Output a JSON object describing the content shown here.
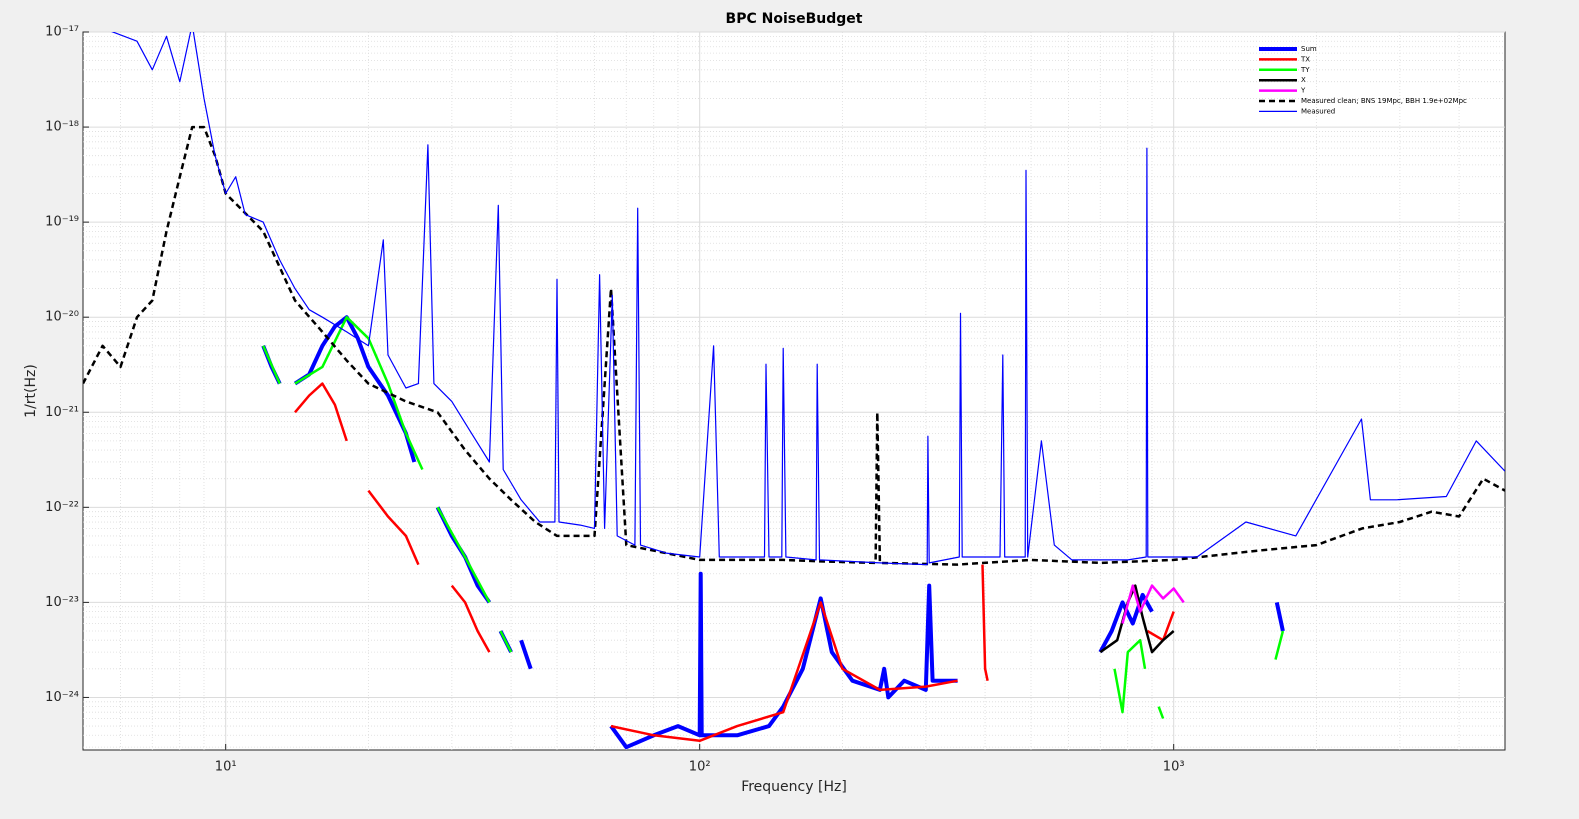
{
  "chart_data": {
    "type": "line",
    "title": "BPC NoiseBudget",
    "x_label": "Frequency [Hz]",
    "y_label": "1/rt(Hz)",
    "xscale": "log",
    "yscale": "log",
    "grid": true,
    "minor_grid": true,
    "legend": "upper right",
    "xlim": [
      5,
      5000
    ],
    "ylim": [
      2.8e-25,
      1e-17
    ],
    "xticks": [
      {
        "value": 10,
        "label": "10¹"
      },
      {
        "value": 100,
        "label": "10²"
      },
      {
        "value": 1000,
        "label": "10³"
      }
    ],
    "yticks": [
      {
        "value": 1e-24,
        "label": "10⁻²⁴"
      },
      {
        "value": 1e-23,
        "label": "10⁻²³"
      },
      {
        "value": 1e-22,
        "label": "10⁻²²"
      },
      {
        "value": 1e-21,
        "label": "10⁻²¹"
      },
      {
        "value": 1e-20,
        "label": "10⁻²⁰"
      },
      {
        "value": 1e-19,
        "label": "10⁻¹⁹"
      },
      {
        "value": 1e-18,
        "label": "10⁻¹⁸"
      },
      {
        "value": 1e-17,
        "label": "10⁻¹⁷"
      }
    ],
    "series": [
      {
        "name": "Sum",
        "color": "#0000ff",
        "style": "thick",
        "x": [
          12,
          12.5,
          13,
          13.5,
          14,
          15,
          16,
          17,
          18,
          19,
          20,
          22,
          24,
          25,
          27,
          28,
          30,
          32,
          34,
          36,
          37,
          38,
          40,
          41,
          42,
          44,
          50,
          65,
          70,
          80,
          90,
          100,
          100.5,
          101,
          120,
          140,
          150,
          165,
          180,
          190,
          210,
          240,
          245,
          250,
          270,
          300,
          305,
          310,
          350,
          500,
          700,
          740,
          780,
          820,
          860,
          900,
          1200,
          1650,
          1700
        ],
        "values": [
          5e-21,
          3e-21,
          2e-21,
          null,
          2e-21,
          2.5e-21,
          5e-21,
          8e-21,
          1e-20,
          6e-21,
          3e-21,
          1.5e-21,
          6e-22,
          3e-22,
          null,
          1e-22,
          5e-23,
          3e-23,
          1.5e-23,
          1e-23,
          null,
          5e-24,
          3e-24,
          null,
          4e-24,
          2e-24,
          null,
          5e-25,
          3e-25,
          4e-25,
          5e-25,
          4e-25,
          2e-23,
          4e-25,
          4e-25,
          5e-25,
          8e-25,
          2e-24,
          1.1e-23,
          3e-24,
          1.5e-24,
          1.2e-24,
          2e-24,
          1e-24,
          1.5e-24,
          1.2e-24,
          1.5e-23,
          1.5e-24,
          1.5e-24,
          null,
          3e-24,
          5e-24,
          1e-23,
          6e-24,
          1.2e-23,
          8e-24,
          null,
          1e-23,
          5e-24
        ]
      },
      {
        "name": "TX",
        "color": "#ff0000",
        "style": "solid",
        "x": [
          14,
          15,
          16,
          17,
          18,
          19,
          20,
          22,
          24,
          25.5,
          27,
          30,
          32,
          34,
          36,
          37,
          65,
          80,
          100,
          120,
          150,
          180,
          200,
          240,
          300,
          350,
          380,
          395,
          400,
          405,
          450,
          880,
          950,
          1000
        ],
        "values": [
          1e-21,
          1.5e-21,
          2e-21,
          1.2e-21,
          5e-22,
          null,
          1.5e-22,
          8e-23,
          5e-23,
          2.5e-23,
          null,
          1.5e-23,
          1e-23,
          5e-24,
          3e-24,
          null,
          5e-25,
          4e-25,
          3.5e-25,
          5e-25,
          7e-25,
          1e-23,
          2e-24,
          1.2e-24,
          1.3e-24,
          1.5e-24,
          null,
          2.5e-23,
          2e-24,
          1.5e-24,
          null,
          5e-24,
          4e-24,
          8e-24
        ]
      },
      {
        "name": "TY",
        "color": "#00ff00",
        "style": "solid",
        "x": [
          12,
          13,
          13.5,
          14,
          16,
          18,
          20,
          22,
          24,
          26,
          27,
          28,
          32,
          36,
          37,
          38,
          40,
          41,
          750,
          780,
          800,
          850,
          870,
          900,
          930,
          950,
          1000,
          1640,
          1700
        ],
        "values": [
          5e-21,
          2e-21,
          null,
          2e-21,
          3e-21,
          1e-20,
          6e-21,
          2e-21,
          6e-22,
          2.5e-22,
          null,
          1e-22,
          3e-23,
          1e-23,
          null,
          5e-24,
          3e-24,
          null,
          2e-24,
          7e-25,
          3e-24,
          4e-24,
          2e-24,
          null,
          8e-25,
          6e-25,
          null,
          2.5e-24,
          5e-24
        ]
      },
      {
        "name": "X",
        "color": "#000000",
        "style": "solid",
        "x": [
          700,
          760,
          800,
          830,
          860,
          900,
          950,
          1000
        ],
        "values": [
          3e-24,
          4e-24,
          1e-23,
          1.5e-23,
          7e-24,
          3e-24,
          4e-24,
          5e-24
        ]
      },
      {
        "name": "Y",
        "color": "#ff00ff",
        "style": "solid",
        "x": [
          780,
          820,
          850,
          900,
          950,
          1000,
          1050
        ],
        "values": [
          6e-24,
          1.5e-23,
          8e-24,
          1.5e-23,
          1.1e-23,
          1.4e-23,
          1e-23
        ]
      },
      {
        "name": "Measured clean; BNS 19Mpc, BBH 1.9e+02Mpc",
        "color": "#000000",
        "style": "dashed",
        "x": [
          5,
          5.5,
          6,
          6.5,
          7,
          7.5,
          8,
          8.5,
          9,
          9.5,
          10,
          12,
          14,
          16,
          18,
          20,
          24,
          28,
          32,
          36,
          40,
          45,
          50,
          60,
          65,
          70,
          100,
          150,
          180,
          235,
          237,
          240,
          350,
          500,
          700,
          1000,
          1500,
          2000,
          2500,
          3000,
          3500,
          4000,
          4500,
          5000
        ],
        "values": [
          2e-21,
          5e-21,
          3e-21,
          1e-20,
          1.5e-20,
          8e-20,
          3e-19,
          1e-18,
          1e-18,
          5e-19,
          2e-19,
          8e-20,
          1.5e-20,
          7e-21,
          3.5e-21,
          2e-21,
          1.3e-21,
          1e-21,
          4e-22,
          2e-22,
          1.2e-22,
          7e-23,
          5e-23,
          5e-23,
          2e-20,
          4e-23,
          2.8e-23,
          2.8e-23,
          2.7e-23,
          2.6e-23,
          1e-21,
          2.6e-23,
          2.5e-23,
          2.8e-23,
          2.6e-23,
          2.8e-23,
          3.5e-23,
          4e-23,
          6e-23,
          7e-23,
          9e-23,
          8e-23,
          2e-22,
          1.5e-22
        ]
      },
      {
        "name": "Measured",
        "color": "#0000ff",
        "style": "thin",
        "x": [
          5.5,
          6.5,
          7,
          7.5,
          8,
          8.5,
          9,
          9.5,
          10,
          10.5,
          11,
          12,
          13,
          14,
          15,
          16,
          18,
          20,
          21.5,
          22,
          24,
          25.5,
          26.7,
          27.5,
          30,
          33,
          36,
          37.6,
          38.5,
          42,
          46,
          49.5,
          50,
          50.5,
          56,
          60,
          61.5,
          63,
          65.4,
          67,
          73,
          74,
          75,
          85,
          100,
          107,
          110,
          137,
          138,
          140,
          149,
          150,
          152,
          176,
          177,
          179,
          240,
          302,
          303,
          305,
          353,
          355,
          358,
          430,
          436,
          440,
          486,
          488,
          492,
          526,
          560,
          610,
          800,
          875,
          878,
          882,
          1120,
          1420,
          1810,
          2490,
          2600,
          2950,
          3760,
          4350,
          5000
        ],
        "values": [
          1.1e-17,
          8e-18,
          4e-18,
          9e-18,
          3e-18,
          1.2e-17,
          2e-18,
          5e-19,
          2e-19,
          3e-19,
          1.2e-19,
          1e-19,
          4e-20,
          2e-20,
          1.2e-20,
          1e-20,
          7e-21,
          5e-21,
          6.5e-20,
          4e-21,
          1.8e-21,
          2e-21,
          6.5e-19,
          2e-21,
          1.3e-21,
          6e-22,
          3e-22,
          1.5e-19,
          2.5e-22,
          1.2e-22,
          7e-23,
          7e-23,
          2.5e-20,
          7e-23,
          6.5e-23,
          6e-23,
          2.8e-20,
          6e-23,
          1.7e-20,
          5e-23,
          4e-23,
          1.4e-19,
          4e-23,
          3.3e-23,
          3e-23,
          5e-21,
          3e-23,
          3e-23,
          3.2e-21,
          3e-23,
          3e-23,
          4.7e-21,
          3e-23,
          2.8e-23,
          3.2e-21,
          2.8e-23,
          2.6e-23,
          2.5e-23,
          5.6e-22,
          2.6e-23,
          3e-23,
          1.1e-20,
          3e-23,
          3e-23,
          4e-21,
          3e-23,
          3e-23,
          3.5e-19,
          3e-23,
          5e-22,
          4e-23,
          2.8e-23,
          2.8e-23,
          3e-23,
          6e-19,
          3e-23,
          3e-23,
          7e-23,
          5e-23,
          8.5e-22,
          1.2e-22,
          1.2e-22,
          1.3e-22,
          5e-22,
          2.4e-22
        ]
      }
    ]
  }
}
